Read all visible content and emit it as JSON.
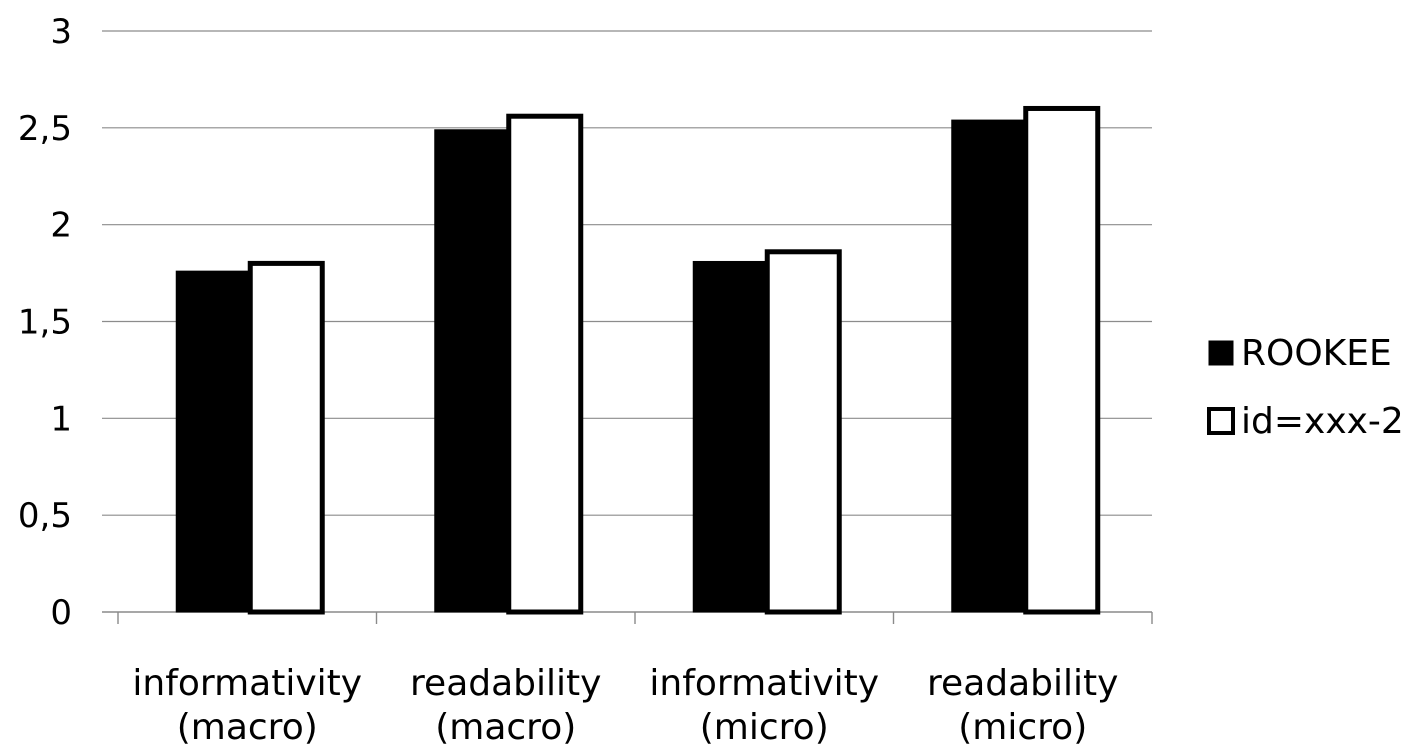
{
  "chart_data": {
    "type": "bar",
    "categories": [
      [
        "informativity",
        "(macro)"
      ],
      [
        "readability",
        "(macro)"
      ],
      [
        "informativity",
        "(micro)"
      ],
      [
        "readability",
        "(micro)"
      ]
    ],
    "series": [
      {
        "name": "ROOKEE",
        "values": [
          1.76,
          2.49,
          1.81,
          2.54
        ],
        "fill": "#000000"
      },
      {
        "name": "id=xxx-2",
        "values": [
          1.8,
          2.56,
          1.86,
          2.6
        ],
        "fill": "#ffffff"
      }
    ],
    "ylim": [
      0,
      3
    ],
    "yticks": [
      "0",
      "0,5",
      "1",
      "1,5",
      "2",
      "2,5",
      "3"
    ],
    "grid": true,
    "legend": "right"
  }
}
